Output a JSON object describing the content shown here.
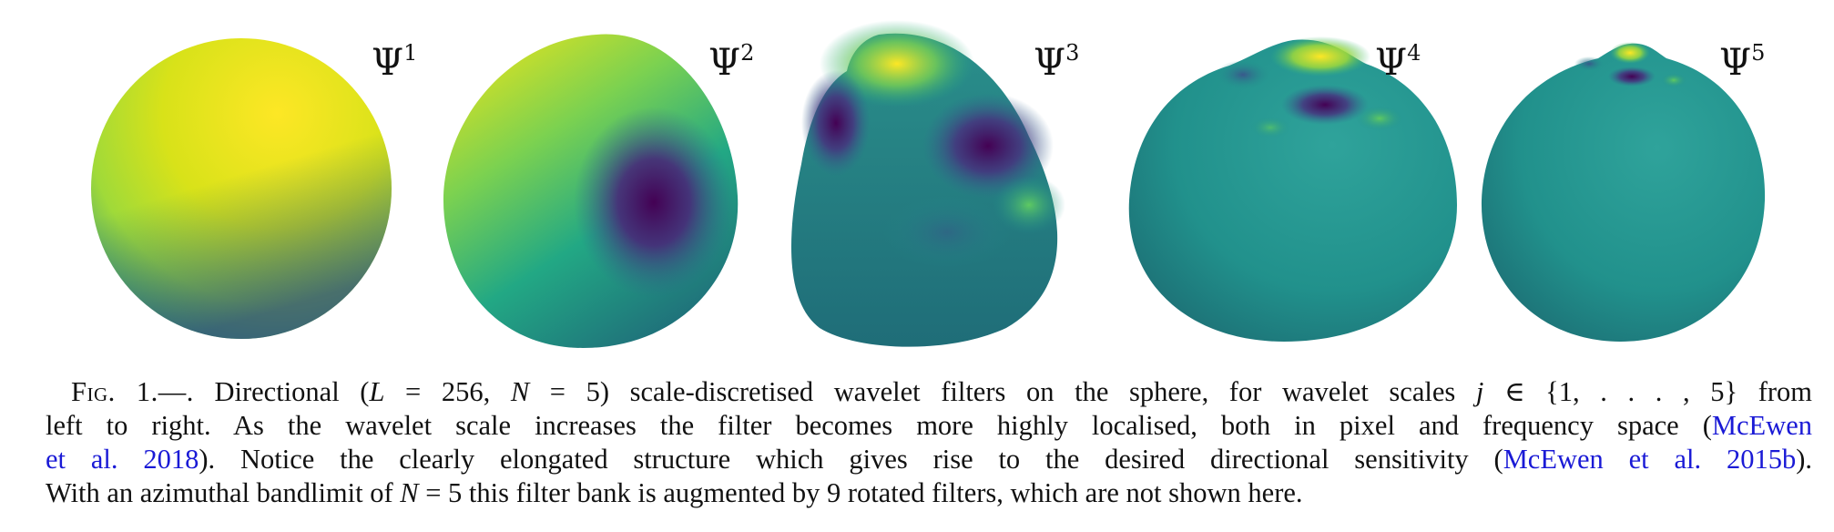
{
  "figure": {
    "panels": [
      {
        "label": "Ψ",
        "exponent": "1"
      },
      {
        "label": "Ψ",
        "exponent": "2"
      },
      {
        "label": "Ψ",
        "exponent": "3"
      },
      {
        "label": "Ψ",
        "exponent": "4"
      },
      {
        "label": "Ψ",
        "exponent": "5"
      }
    ],
    "colors": {
      "yellow": "#f4e61e",
      "green": "#5ec962",
      "teal": "#21918c",
      "blue": "#3b528b",
      "purple": "#440154"
    }
  },
  "caption": {
    "fig_label": "Fig. 1.—.",
    "line1_a": "Directional (",
    "line1_math_a": "L",
    "line1_b": " = 256, ",
    "line1_math_b": "N",
    "line1_c": " = 5) scale-discretised wavelet filters on the sphere, for wavelet scales ",
    "line1_math_c": "j",
    "line1_d": " ∈ {1, . . . , 5} from",
    "line2_a": "left to right. As the wavelet scale increases the filter becomes more highly localised, both in pixel and frequency space (",
    "line2_cite": "McEwen",
    "line3_cite_a": "et al. 2018",
    "line3_b": "). Notice the clearly elongated structure which gives rise to the desired directional sensitivity (",
    "line3_cite_b": "McEwen et al. 2015b",
    "line3_c": ").",
    "line4_a": "With an azimuthal bandlimit of ",
    "line4_math": "N",
    "line4_b": " = 5 this filter bank is augmented by 9 rotated filters, which are not shown here."
  }
}
